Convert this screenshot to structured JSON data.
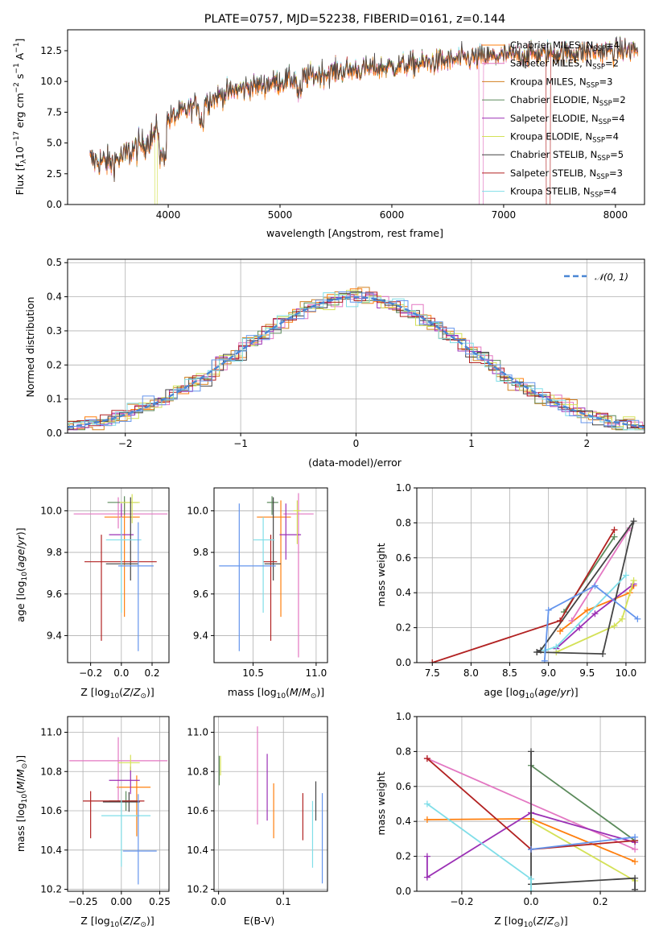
{
  "colors": [
    "#ff7f0e",
    "#e377c2",
    "#2ca02c",
    "#9467bd",
    "#bcbd22",
    "#444444",
    "#d62728",
    "#17becf",
    "#1f77b4"
  ],
  "chart_data": [
    {
      "id": "spectrum",
      "type": "line",
      "title": "PLATE=0757, MJD=52238, FIBERID=0161, z=0.144",
      "xlabel": "wavelength [Angstrom, rest frame]",
      "ylabel": "Flux [f_λ10^-17 erg cm^-2 s^-1 A^-1]",
      "xlim": [
        3100,
        8260
      ],
      "ylim": [
        0,
        14.2
      ],
      "xticks": [
        4000,
        5000,
        6000,
        7000,
        8000
      ],
      "yticks": [
        0.0,
        2.5,
        5.0,
        7.5,
        10.0,
        12.5
      ],
      "grid": false,
      "legend": "upper right",
      "series": [
        {
          "name": "Chabrier MILES, N_SSP=4",
          "color": "#ff7f0e"
        },
        {
          "name": "Salpeter MILES, N_SSP=2",
          "color": "#e377c2"
        },
        {
          "name": "Kroupa MILES, N_SSP=3",
          "color": "#d2801f"
        },
        {
          "name": "Chabrier ELODIE, N_SSP=2",
          "color": "#5b8a5b"
        },
        {
          "name": "Salpeter ELODIE, N_SSP=4",
          "color": "#9b30b5"
        },
        {
          "name": "Kroupa ELODIE, N_SSP=4",
          "color": "#d4e157"
        },
        {
          "name": "Chabrier STELIB, N_SSP=5",
          "color": "#444444"
        },
        {
          "name": "Salpeter STELIB, N_SSP=3",
          "color": "#b22222"
        },
        {
          "name": "Kroupa STELIB, N_SSP=4",
          "color": "#80dee8"
        }
      ],
      "continuum": {
        "x": [
          3300,
          3500,
          3800,
          4000,
          4300,
          4600,
          5000,
          5500,
          6000,
          6500,
          7000,
          7500,
          8000,
          8200
        ],
        "y": [
          3.6,
          3.4,
          5.0,
          6.9,
          8.3,
          9.3,
          10.0,
          10.8,
          11.2,
          11.7,
          12.1,
          12.3,
          12.5,
          12.6
        ]
      }
    },
    {
      "id": "residuals",
      "type": "line",
      "xlabel": "(data-model)/error",
      "ylabel": "Normed distribution",
      "xlim": [
        -2.5,
        2.5
      ],
      "ylim": [
        0,
        0.51
      ],
      "xticks": [
        -2,
        -1,
        0,
        1,
        2
      ],
      "yticks": [
        0.0,
        0.1,
        0.2,
        0.3,
        0.4,
        0.5
      ],
      "grid": true,
      "legend": "upper right",
      "normal_label": "N(0,1)"
    },
    {
      "id": "age-vs-Z",
      "type": "scatter",
      "xlabel": "Z [log10(Z/Z☉)]",
      "ylabel": "age [log10(age/yr)]",
      "xlim": [
        -0.35,
        0.31
      ],
      "ylim": [
        9.27,
        10.11
      ],
      "xticks": [
        -0.2,
        0.0,
        0.2
      ],
      "yticks": [
        9.4,
        9.6,
        9.8,
        10.0
      ],
      "grid": true,
      "points": [
        {
          "x": 0.02,
          "xerr": [
            0.13,
            0.1
          ],
          "y": 9.97,
          "yerr": [
            0.48,
            0.08
          ],
          "color": "#ff7f0e"
        },
        {
          "x": -0.02,
          "xerr": [
            0.29,
            0.32
          ],
          "y": 9.985,
          "yerr": [
            0.07,
            0.08
          ],
          "color": "#e377c2"
        },
        {
          "x": 0.02,
          "xerr": [
            0.11,
            0.09
          ],
          "y": 10.04,
          "yerr": [
            0.06,
            0.03
          ],
          "color": "#5b8a5b"
        },
        {
          "x": 0.0,
          "xerr": [
            0.08,
            0.08
          ],
          "y": 9.885,
          "yerr": [
            0.12,
            0.15
          ],
          "color": "#9b30b5"
        },
        {
          "x": 0.07,
          "xerr": [
            0.08,
            0.05
          ],
          "y": 10.04,
          "yerr": [
            0.1,
            0.04
          ],
          "color": "#d4e157"
        },
        {
          "x": 0.06,
          "xerr": [
            0.16,
            0.05
          ],
          "y": 9.745,
          "yerr": [
            0.08,
            0.32
          ],
          "color": "#444444"
        },
        {
          "x": -0.13,
          "xerr": [
            0.11,
            0.36
          ],
          "y": 9.755,
          "yerr": [
            0.38,
            0.13
          ],
          "color": "#b22222"
        },
        {
          "x": 0.0,
          "xerr": [
            0.1,
            0.13
          ],
          "y": 9.86,
          "yerr": [
            0.35,
            0.11
          ],
          "color": "#80dee8"
        },
        {
          "x": 0.11,
          "xerr": [
            0.13,
            0.1
          ],
          "y": 9.735,
          "yerr": [
            0.41,
            0.21
          ],
          "color": "#6495ed"
        }
      ]
    },
    {
      "id": "age-vs-mass",
      "type": "scatter",
      "xlabel": "mass [log10(M/M☉)]",
      "ylabel": "",
      "xlim": [
        10.19,
        11.09
      ],
      "ylim": [
        9.27,
        10.11
      ],
      "xticks": [
        10.5,
        11.0
      ],
      "yticks": [
        9.4,
        9.6,
        9.8,
        10.0
      ],
      "grid": true,
      "points": [
        {
          "x": 10.72,
          "xerr": [
            0.19,
            0.08
          ],
          "y": 9.97,
          "yerr": [
            0.48,
            0.08
          ],
          "color": "#ff7f0e"
        },
        {
          "x": 10.86,
          "xerr": [
            0.12,
            0.12
          ],
          "y": 9.985,
          "yerr": [
            0.69,
            0.1
          ],
          "color": "#e377c2"
        },
        {
          "x": 10.65,
          "xerr": [
            0.04,
            0.05
          ],
          "y": 10.04,
          "yerr": [
            0.06,
            0.03
          ],
          "color": "#5b8a5b"
        },
        {
          "x": 10.76,
          "xerr": [
            0.05,
            0.12
          ],
          "y": 9.885,
          "yerr": [
            0.12,
            0.15
          ],
          "color": "#9b30b5"
        },
        {
          "x": 10.85,
          "xerr": [
            0.03,
            0.03
          ],
          "y": 10.0,
          "yerr": [
            0.16,
            0.05
          ],
          "color": "#d4e157"
        },
        {
          "x": 10.66,
          "xerr": [
            0.07,
            0.06
          ],
          "y": 9.745,
          "yerr": [
            0.08,
            0.32
          ],
          "color": "#444444"
        },
        {
          "x": 10.64,
          "xerr": [
            0.06,
            0.05
          ],
          "y": 9.755,
          "yerr": [
            0.38,
            0.13
          ],
          "color": "#b22222"
        },
        {
          "x": 10.58,
          "xerr": [
            0.08,
            0.09
          ],
          "y": 9.86,
          "yerr": [
            0.35,
            0.11
          ],
          "color": "#80dee8"
        },
        {
          "x": 10.39,
          "xerr": [
            0.16,
            0.29
          ],
          "y": 9.735,
          "yerr": [
            0.41,
            0.3
          ],
          "color": "#6495ed"
        }
      ]
    },
    {
      "id": "weight-vs-age",
      "type": "line",
      "xlabel": "age [log10(age/yr)]",
      "ylabel": "mass weight",
      "xlim": [
        7.3,
        10.25
      ],
      "ylim": [
        0,
        1
      ],
      "xticks": [
        7.5,
        8.0,
        8.5,
        9.0,
        9.5,
        10.0
      ],
      "yticks": [
        0.0,
        0.2,
        0.4,
        0.6,
        0.8,
        1.0
      ],
      "grid": true,
      "series": [
        {
          "color": "#ff7f0e",
          "x": [
            9.15,
            9.5,
            10.05,
            10.1
          ],
          "y": [
            0.18,
            0.3,
            0.4,
            0.44
          ]
        },
        {
          "color": "#e377c2",
          "x": [
            9.3,
            10.05
          ],
          "y": [
            0.24,
            0.77
          ]
        },
        {
          "color": "#5b8a5b",
          "x": [
            9.2,
            9.85
          ],
          "y": [
            0.29,
            0.72
          ]
        },
        {
          "color": "#9b30b5",
          "x": [
            9.1,
            9.4,
            9.6,
            10.1
          ],
          "y": [
            0.08,
            0.2,
            0.28,
            0.45
          ]
        },
        {
          "color": "#d4e157",
          "x": [
            9.1,
            9.85,
            9.95,
            10.1
          ],
          "y": [
            0.06,
            0.21,
            0.25,
            0.47
          ]
        },
        {
          "color": "#444444",
          "x": [
            8.85,
            9.7,
            10.1,
            8.9,
            8.85
          ],
          "y": [
            0.06,
            0.05,
            0.81,
            0.07,
            0.06
          ]
        },
        {
          "color": "#b22222",
          "x": [
            7.5,
            9.15,
            9.85
          ],
          "y": [
            0.0,
            0.24,
            0.76
          ]
        },
        {
          "color": "#80dee8",
          "x": [
            8.95,
            9.1,
            10.0
          ],
          "y": [
            0.07,
            0.09,
            0.5
          ]
        },
        {
          "color": "#6495ed",
          "x": [
            8.95,
            9.0,
            9.6,
            10.15
          ],
          "y": [
            0.01,
            0.3,
            0.44,
            0.25
          ]
        }
      ]
    },
    {
      "id": "mass-vs-Z",
      "type": "scatter",
      "xlabel": "Z [log10(Z/Z☉)]",
      "ylabel": "mass [log10(M/M☉)]",
      "xlim": [
        -0.35,
        0.31
      ],
      "ylim": [
        10.19,
        11.08
      ],
      "xticks": [
        -0.25,
        0.0,
        0.25
      ],
      "yticks": [
        10.2,
        10.4,
        10.6,
        10.8,
        11.0
      ],
      "grid": true,
      "points": [
        {
          "x": 0.1,
          "xerr": [
            0.13,
            0.09
          ],
          "y": 10.72,
          "yerr": [
            0.25,
            0.06
          ],
          "color": "#ff7f0e"
        },
        {
          "x": -0.02,
          "xerr": [
            0.32,
            0.32
          ],
          "y": 10.855,
          "yerr": [
            0.21,
            0.12
          ],
          "color": "#e377c2"
        },
        {
          "x": 0.03,
          "xerr": [
            0.11,
            0.08
          ],
          "y": 10.65,
          "yerr": [
            0.05,
            0.05
          ],
          "color": "#5b8a5b"
        },
        {
          "x": 0.06,
          "xerr": [
            0.14,
            0.06
          ],
          "y": 10.755,
          "yerr": [
            0.07,
            0.07
          ],
          "color": "#9b30b5"
        },
        {
          "x": 0.06,
          "xerr": [
            0.08,
            0.06
          ],
          "y": 10.845,
          "yerr": [
            0.04,
            0.04
          ],
          "color": "#d4e157"
        },
        {
          "x": 0.05,
          "xerr": [
            0.17,
            0.07
          ],
          "y": 10.645,
          "yerr": [
            0.05,
            0.05
          ],
          "color": "#444444"
        },
        {
          "x": -0.2,
          "xerr": [
            0.05,
            0.35
          ],
          "y": 10.65,
          "yerr": [
            0.19,
            0.05
          ],
          "color": "#b22222"
        },
        {
          "x": 0.0,
          "xerr": [
            0.13,
            0.19
          ],
          "y": 10.575,
          "yerr": [
            0.26,
            0.08
          ],
          "color": "#80dee8"
        },
        {
          "x": 0.11,
          "xerr": [
            0.1,
            0.12
          ],
          "y": 10.395,
          "yerr": [
            0.17,
            0.29
          ],
          "color": "#6495ed"
        }
      ]
    },
    {
      "id": "mass-vs-EBV",
      "type": "scatter",
      "xlabel": "E(B-V)",
      "ylabel": "",
      "xlim": [
        -0.007,
        0.168
      ],
      "ylim": [
        10.19,
        11.08
      ],
      "xticks": [
        0.0,
        0.1
      ],
      "yticks": [
        10.2,
        10.4,
        10.6,
        10.8,
        11.0
      ],
      "grid": true,
      "points": [
        {
          "x": 0.085,
          "y": 10.6,
          "yerr": [
            0.14,
            0.14
          ],
          "color": "#ff7f0e"
        },
        {
          "x": 0.06,
          "y": 10.78,
          "yerr": [
            0.25,
            0.25
          ],
          "color": "#e377c2"
        },
        {
          "x": 0.001,
          "y": 10.78,
          "yerr": [
            0.05,
            0.1
          ],
          "color": "#5b8a5b"
        },
        {
          "x": 0.075,
          "y": 10.72,
          "yerr": [
            0.17,
            0.17
          ],
          "color": "#9b30b5"
        },
        {
          "x": 0.003,
          "y": 10.83,
          "yerr": [
            0.05,
            0.05
          ],
          "color": "#d4e157"
        },
        {
          "x": 0.15,
          "y": 10.65,
          "yerr": [
            0.1,
            0.1
          ],
          "color": "#444444"
        },
        {
          "x": 0.13,
          "y": 10.57,
          "yerr": [
            0.12,
            0.12
          ],
          "color": "#b22222"
        },
        {
          "x": 0.145,
          "y": 10.48,
          "yerr": [
            0.17,
            0.17
          ],
          "color": "#80dee8"
        },
        {
          "x": 0.16,
          "y": 10.46,
          "yerr": [
            0.23,
            0.23
          ],
          "color": "#6495ed"
        }
      ]
    },
    {
      "id": "weight-vs-Z",
      "type": "line",
      "xlabel": "Z [log10(Z/Z☉)]",
      "ylabel": "mass weight",
      "xlim": [
        -0.33,
        0.33
      ],
      "ylim": [
        0,
        1
      ],
      "xticks": [
        -0.2,
        0.0,
        0.2
      ],
      "yticks": [
        0.0,
        0.2,
        0.4,
        0.6,
        0.8,
        1.0
      ],
      "grid": true,
      "series": [
        {
          "color": "#ff7f0e",
          "x": [
            -0.3,
            0.0,
            0.3
          ],
          "y": [
            0.41,
            0.415,
            0.17
          ]
        },
        {
          "color": "#e377c2",
          "x": [
            -0.3,
            0.3
          ],
          "y": [
            0.76,
            0.24
          ]
        },
        {
          "color": "#5b8a5b",
          "x": [
            0.0,
            0.3
          ],
          "y": [
            0.72,
            0.29
          ]
        },
        {
          "color": "#9b30b5",
          "x": [
            -0.3,
            -0.3,
            0.0,
            0.3
          ],
          "y": [
            0.2,
            0.08,
            0.45,
            0.28
          ]
        },
        {
          "color": "#d4e157",
          "x": [
            0.0,
            0.3
          ],
          "y": [
            0.4,
            0.06
          ]
        },
        {
          "color": "#444444",
          "x": [
            0.0,
            0.0,
            0.3,
            0.3
          ],
          "y": [
            0.8,
            0.04,
            0.075,
            0.01
          ]
        },
        {
          "color": "#b22222",
          "x": [
            -0.3,
            0.0,
            0.3
          ],
          "y": [
            0.76,
            0.24,
            0.29
          ]
        },
        {
          "color": "#80dee8",
          "x": [
            -0.3,
            0.0,
            0.0
          ],
          "y": [
            0.5,
            0.07,
            0.0
          ]
        },
        {
          "color": "#6495ed",
          "x": [
            0.0,
            0.3
          ],
          "y": [
            0.24,
            0.31
          ]
        }
      ]
    }
  ]
}
